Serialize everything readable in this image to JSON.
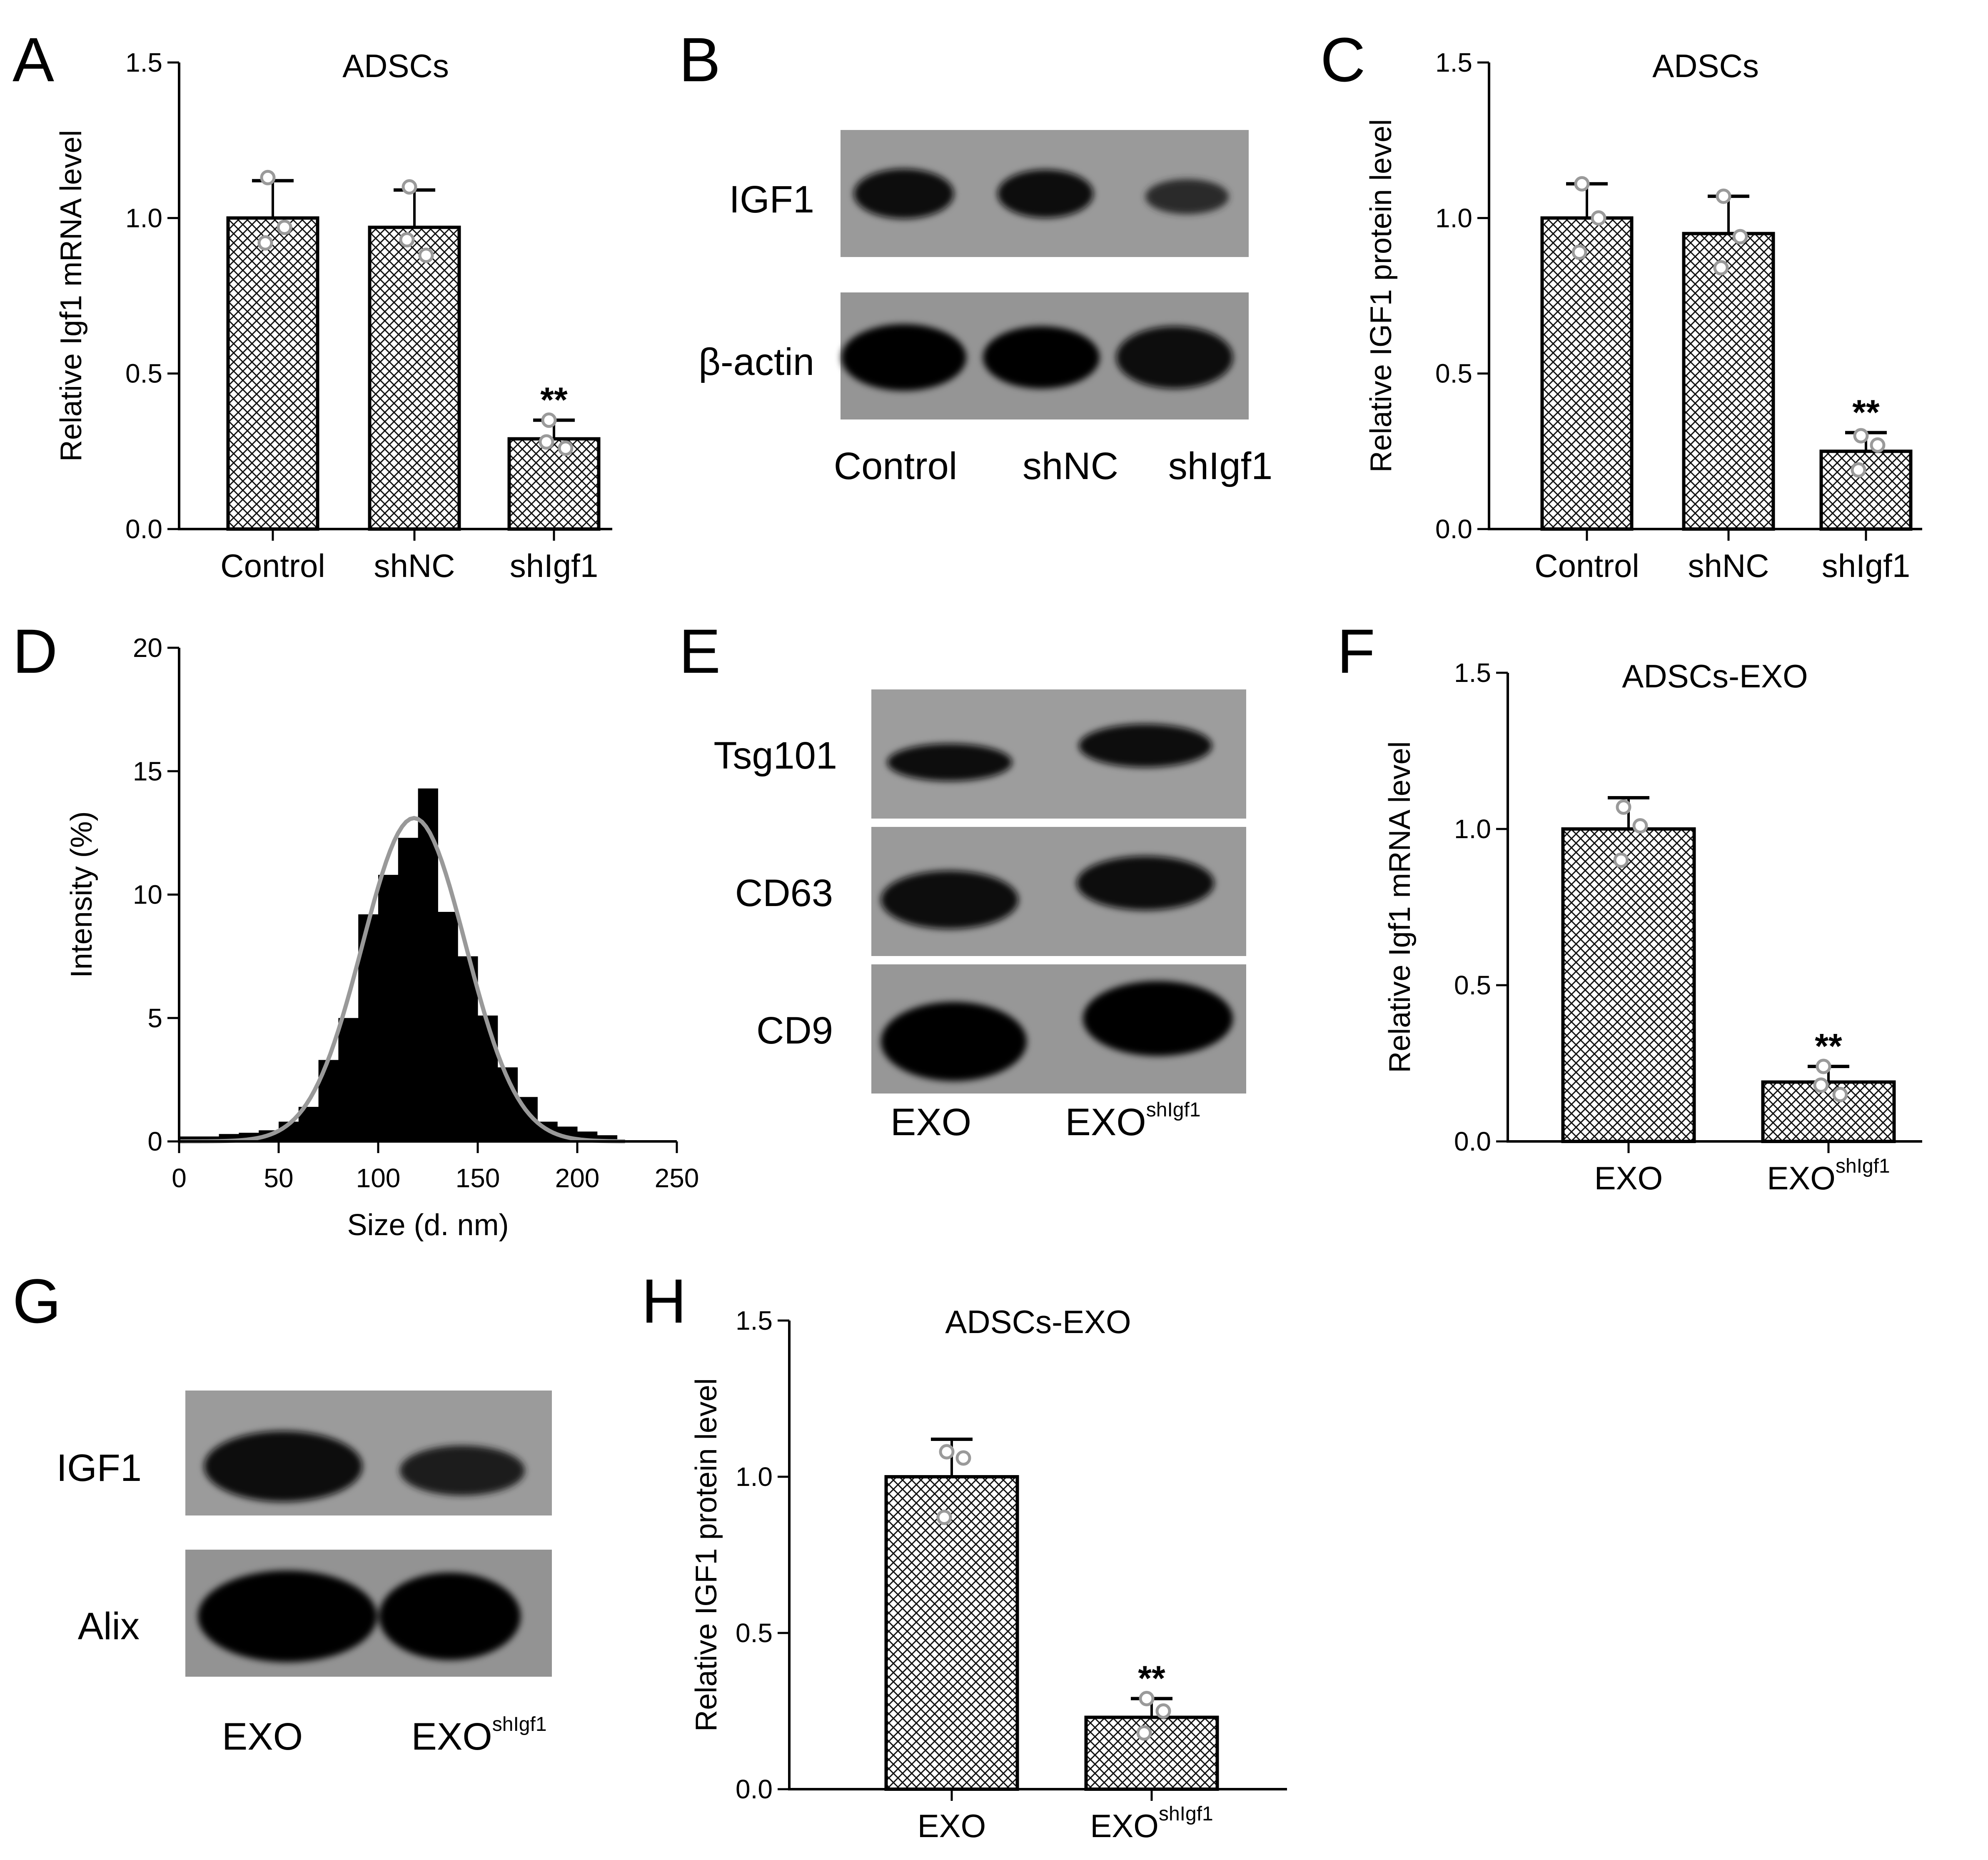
{
  "panels": {
    "A": "A",
    "B": "B",
    "C": "C",
    "D": "D",
    "E": "E",
    "F": "F",
    "G": "G",
    "H": "H"
  },
  "blots": {
    "B": {
      "rows": [
        "IGF1",
        "β-actin"
      ],
      "lanes": [
        "Control",
        "shNC",
        "shIgf1"
      ]
    },
    "E": {
      "rows": [
        "Tsg101",
        "CD63",
        "CD9"
      ],
      "lanes": [
        "EXO",
        "EXO"
      ],
      "lane_sup": "shIgf1"
    },
    "G": {
      "rows": [
        "IGF1",
        "Alix"
      ],
      "lanes": [
        "EXO",
        "EXO"
      ],
      "lane_sup": "shIgf1"
    }
  },
  "chart_data": [
    {
      "id": "A",
      "type": "bar",
      "title": "ADSCs",
      "ylabel": "Relative Igf1 mRNA level",
      "ylim": [
        0,
        1.5
      ],
      "yticks": [
        "0.0",
        "0.5",
        "1.0",
        "1.5"
      ],
      "categories": [
        "Control",
        "shNC",
        "shIgf1"
      ],
      "category_sup": [
        "",
        "",
        ""
      ],
      "values": [
        1.0,
        0.97,
        0.29
      ],
      "errors": [
        0.12,
        0.12,
        0.06
      ],
      "points": [
        [
          1.13,
          0.97,
          0.92
        ],
        [
          1.1,
          0.88,
          0.93
        ],
        [
          0.35,
          0.26,
          0.28
        ]
      ],
      "significance": [
        "",
        "",
        "**"
      ]
    },
    {
      "id": "C",
      "type": "bar",
      "title": "ADSCs",
      "ylabel": "Relative IGF1 protein level",
      "ylim": [
        0,
        1.5
      ],
      "yticks": [
        "0.0",
        "0.5",
        "1.0",
        "1.5"
      ],
      "categories": [
        "Control",
        "shNC",
        "shIgf1"
      ],
      "category_sup": [
        "",
        "",
        ""
      ],
      "values": [
        1.0,
        0.95,
        0.25
      ],
      "errors": [
        0.11,
        0.12,
        0.06
      ],
      "points": [
        [
          1.11,
          1.0,
          0.89
        ],
        [
          1.07,
          0.94,
          0.84
        ],
        [
          0.3,
          0.27,
          0.19
        ]
      ],
      "significance": [
        "",
        "",
        "**"
      ]
    },
    {
      "id": "D",
      "type": "histogram",
      "title": "",
      "xlabel": "Size (d. nm)",
      "ylabel": "Intensity (%)",
      "xlim": [
        0,
        250
      ],
      "ylim": [
        0,
        20
      ],
      "xticks": [
        "0",
        "50",
        "100",
        "150",
        "200",
        "250"
      ],
      "yticks": [
        "0",
        "5",
        "10",
        "15",
        "20"
      ],
      "bin_width": 10,
      "bin_starts": [
        0,
        10,
        20,
        30,
        40,
        50,
        60,
        70,
        80,
        90,
        100,
        110,
        120,
        130,
        140,
        150,
        160,
        170,
        180,
        190,
        200,
        210
      ],
      "values": [
        0.2,
        0.2,
        0.3,
        0.35,
        0.45,
        0.8,
        1.4,
        3.3,
        5.0,
        9.2,
        10.8,
        12.3,
        14.3,
        9.3,
        7.5,
        5.1,
        3.0,
        1.8,
        0.8,
        0.6,
        0.4,
        0.25
      ],
      "fit": {
        "type": "gaussian",
        "mean": 118,
        "sd": 26,
        "peak": 13.1,
        "color": "#999999"
      }
    },
    {
      "id": "F",
      "type": "bar",
      "title": "ADSCs-EXO",
      "ylabel": "Relative Igf1 mRNA level",
      "ylim": [
        0,
        1.5
      ],
      "yticks": [
        "0.0",
        "0.5",
        "1.0",
        "1.5"
      ],
      "categories": [
        "EXO",
        "EXO"
      ],
      "category_sup": [
        "",
        "shIgf1"
      ],
      "values": [
        1.0,
        0.19
      ],
      "errors": [
        0.1,
        0.05
      ],
      "points": [
        [
          1.07,
          1.01,
          0.9
        ],
        [
          0.24,
          0.15,
          0.18
        ]
      ],
      "significance": [
        "",
        "**"
      ]
    },
    {
      "id": "H",
      "type": "bar",
      "title": "ADSCs-EXO",
      "ylabel": "Relative IGF1 protein level",
      "ylim": [
        0,
        1.5
      ],
      "yticks": [
        "0.0",
        "0.5",
        "1.0",
        "1.5"
      ],
      "categories": [
        "EXO",
        "EXO"
      ],
      "category_sup": [
        "",
        "shIgf1"
      ],
      "values": [
        1.0,
        0.23
      ],
      "errors": [
        0.12,
        0.06
      ],
      "points": [
        [
          1.08,
          1.06,
          0.87
        ],
        [
          0.29,
          0.25,
          0.18
        ]
      ],
      "significance": [
        "",
        "**"
      ]
    }
  ]
}
